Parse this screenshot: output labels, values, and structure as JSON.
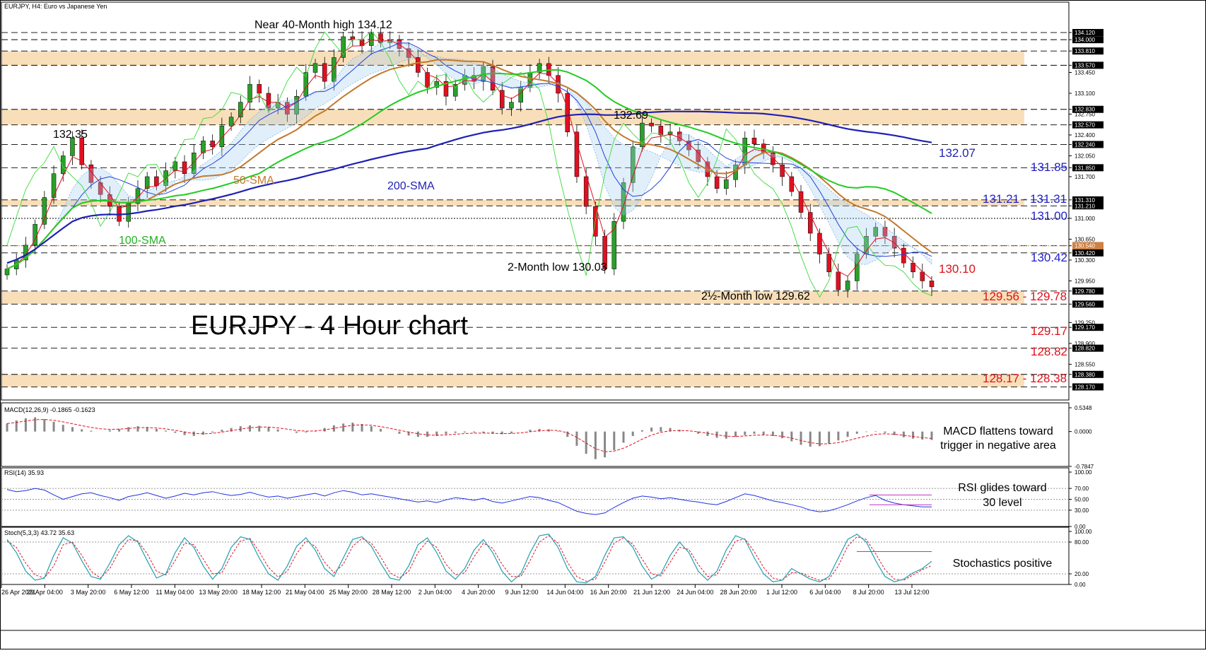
{
  "header": {
    "symbol_text": "EURJPY, H4:",
    "symbol_desc": "Euro vs Japanese Yen"
  },
  "chart_data": [
    {
      "type": "candlestick",
      "title": "EURJPY - 4 Hour chart",
      "instrument": "EURJPY",
      "timeframe": "H4",
      "ylim": [
        127.95,
        134.5
      ],
      "y_ticks": [
        134.12,
        134.0,
        133.81,
        133.57,
        133.45,
        133.1,
        132.83,
        132.75,
        132.57,
        132.4,
        132.24,
        132.05,
        131.85,
        131.7,
        131.31,
        131.21,
        131.0,
        130.65,
        130.54,
        130.42,
        130.3,
        129.95,
        129.78,
        129.56,
        129.25,
        129.17,
        128.9,
        128.82,
        128.55,
        128.38,
        128.17
      ],
      "y_highlight_ticks": [
        134.12,
        134.0,
        133.81,
        133.57,
        132.83,
        132.57,
        132.24,
        131.85,
        131.31,
        131.21,
        130.54,
        130.42,
        129.78,
        129.56,
        129.17,
        128.82,
        128.38,
        128.17
      ],
      "x_labels": [
        "26 Apr 2021",
        "29 Apr 04:00",
        "3 May 20:00",
        "6 May 12:00",
        "11 May 04:00",
        "13 May 20:00",
        "18 May 12:00",
        "21 May 04:00",
        "25 May 20:00",
        "28 May 12:00",
        "2 Jun 04:00",
        "4 Jun 20:00",
        "9 Jun 12:00",
        "14 Jun 04:00",
        "16 Jun 20:00",
        "21 Jun 12:00",
        "24 Jun 04:00",
        "28 Jun 20:00",
        "1 Jul 12:00",
        "6 Jul 04:00",
        "8 Jul 20:00",
        "13 Jul 12:00"
      ],
      "series": [
        {
          "name": "EURJPY H4 close",
          "values": [
            130.15,
            130.3,
            130.55,
            130.9,
            131.35,
            131.75,
            132.05,
            132.35,
            131.9,
            131.6,
            131.4,
            131.2,
            130.95,
            131.25,
            131.5,
            131.7,
            131.55,
            131.8,
            131.95,
            131.75,
            132.1,
            132.3,
            132.2,
            132.55,
            132.7,
            132.95,
            133.25,
            133.1,
            132.85,
            132.95,
            132.75,
            133.05,
            133.45,
            133.6,
            133.3,
            133.7,
            134.05,
            134.0,
            133.9,
            134.1,
            133.95,
            134.0,
            133.85,
            133.7,
            133.45,
            133.2,
            133.3,
            133.05,
            133.25,
            133.4,
            133.3,
            133.55,
            133.15,
            132.85,
            132.95,
            133.2,
            133.45,
            133.6,
            133.4,
            133.1,
            132.45,
            131.7,
            131.2,
            130.7,
            130.15,
            130.95,
            131.6,
            132.2,
            132.6,
            132.55,
            132.4,
            132.45,
            132.3,
            132.15,
            131.95,
            131.7,
            131.5,
            131.65,
            131.9,
            132.35,
            132.25,
            132.1,
            131.9,
            131.7,
            131.45,
            131.1,
            130.75,
            130.4,
            130.1,
            129.8,
            129.95,
            130.4,
            130.7,
            130.85,
            130.7,
            130.5,
            130.25,
            130.1,
            129.95,
            129.85
          ]
        }
      ],
      "moving_averages": [
        {
          "name": "200-SMA",
          "color": "#1f1fb5",
          "end_label": "132.07"
        },
        {
          "name": "100-SMA",
          "color": "#22cc22"
        },
        {
          "name": "50-SMA",
          "color": "#c07a30"
        }
      ],
      "levels": [
        {
          "label": "Near 40-Month high 134.12"
        },
        {
          "label": "132.35"
        },
        {
          "label": "132.69"
        },
        {
          "label": "2-Month low 130.03"
        },
        {
          "label": "2½-Month low 129.62"
        },
        {
          "label": "131.85",
          "color": "#1f1fc8"
        },
        {
          "label": "131.21 - 131.31",
          "color": "#1f1fc8"
        },
        {
          "label": "131.00",
          "color": "#1f1fc8"
        },
        {
          "label": "130.42",
          "color": "#1f1fc8"
        },
        {
          "label": "130.10",
          "color": "#e0101a"
        },
        {
          "label": "129.56 - 129.78",
          "color": "#e0101a"
        },
        {
          "label": "129.17",
          "color": "#e0101a"
        },
        {
          "label": "128.82",
          "color": "#e0101a"
        },
        {
          "label": "128.17 - 128.38",
          "color": "#e0101a"
        }
      ],
      "zones": [
        "133.57 - 133.81",
        "132.57 - 132.83",
        "131.21 - 131.31",
        "129.56 - 129.78",
        "128.17 - 128.38"
      ],
      "zone_color": "#f9dfb9"
    },
    {
      "type": "histogram",
      "name": "MACD",
      "header": "MACD(12,26,9) -0.1865 -0.1623",
      "y_ticks": [
        "0.5348",
        "0.0000",
        "-0.7847"
      ],
      "annotation": [
        "MACD flattens toward",
        "trigger in negative area"
      ],
      "values": [
        0.18,
        0.25,
        0.3,
        0.32,
        0.28,
        0.22,
        0.15,
        0.1,
        0.05,
        0.02,
        0.0,
        0.03,
        0.06,
        0.1,
        0.12,
        0.1,
        0.06,
        0.02,
        -0.03,
        -0.08,
        -0.1,
        -0.07,
        -0.02,
        0.04,
        0.08,
        0.12,
        0.14,
        0.13,
        0.1,
        0.05,
        0.0,
        -0.03,
        -0.02,
        0.02,
        0.08,
        0.14,
        0.18,
        0.2,
        0.17,
        0.12,
        0.06,
        0.0,
        -0.05,
        -0.09,
        -0.12,
        -0.12,
        -0.1,
        -0.06,
        -0.03,
        -0.02,
        -0.02,
        -0.03,
        -0.05,
        -0.06,
        -0.04,
        0.0,
        0.04,
        0.06,
        0.05,
        0.01,
        -0.12,
        -0.32,
        -0.5,
        -0.62,
        -0.58,
        -0.42,
        -0.25,
        -0.1,
        0.03,
        0.09,
        0.1,
        0.08,
        0.04,
        0.0,
        -0.05,
        -0.1,
        -0.14,
        -0.16,
        -0.12,
        -0.08,
        -0.05,
        -0.07,
        -0.1,
        -0.15,
        -0.22,
        -0.3,
        -0.34,
        -0.33,
        -0.27,
        -0.2,
        -0.12,
        -0.05,
        -0.01,
        0.01,
        -0.03,
        -0.08,
        -0.13,
        -0.16,
        -0.18,
        -0.19
      ]
    },
    {
      "type": "line",
      "name": "RSI",
      "header": "RSI(14) 35.93",
      "ylim": [
        0,
        100
      ],
      "y_ticks": [
        "100.00",
        "70.00",
        "50.00",
        "30.00",
        "0.00"
      ],
      "annotation": [
        "RSI glides toward",
        "30 level"
      ],
      "series": [
        {
          "name": "RSI",
          "values": [
            68,
            64,
            66,
            70,
            67,
            58,
            50,
            55,
            60,
            62,
            57,
            53,
            48,
            55,
            58,
            62,
            57,
            52,
            56,
            61,
            58,
            62,
            64,
            60,
            57,
            59,
            63,
            58,
            54,
            56,
            52,
            55,
            58,
            61,
            56,
            62,
            66,
            63,
            58,
            60,
            57,
            54,
            51,
            48,
            45,
            47,
            44,
            49,
            53,
            51,
            48,
            52,
            46,
            43,
            47,
            51,
            55,
            53,
            48,
            44,
            36,
            28,
            24,
            22,
            25,
            35,
            44,
            52,
            56,
            54,
            51,
            53,
            50,
            47,
            45,
            42,
            40,
            46,
            53,
            60,
            57,
            52,
            47,
            44,
            40,
            36,
            30,
            27,
            29,
            34,
            40,
            47,
            53,
            57,
            48,
            43,
            40,
            38,
            36,
            35.93
          ]
        }
      ]
    },
    {
      "type": "line",
      "name": "Stochastics",
      "header": "Stoch(5,3,3) 43.72 35.63",
      "ylim": [
        0,
        100
      ],
      "y_ticks": [
        "100.00",
        "80.00",
        "20.00",
        "0.00"
      ],
      "annotation": [
        "Stochastics positive"
      ],
      "series": [
        {
          "name": "%K",
          "values": [
            85,
            60,
            25,
            8,
            12,
            55,
            88,
            78,
            45,
            15,
            10,
            40,
            75,
            92,
            80,
            45,
            12,
            20,
            60,
            88,
            70,
            35,
            10,
            30,
            70,
            90,
            85,
            50,
            20,
            8,
            35,
            72,
            88,
            65,
            30,
            15,
            50,
            85,
            90,
            72,
            40,
            12,
            8,
            35,
            75,
            88,
            60,
            25,
            10,
            30,
            65,
            85,
            60,
            25,
            5,
            20,
            60,
            92,
            95,
            70,
            30,
            5,
            3,
            15,
            55,
            88,
            90,
            70,
            35,
            10,
            20,
            55,
            80,
            60,
            25,
            8,
            25,
            65,
            92,
            85,
            50,
            20,
            5,
            8,
            30,
            20,
            10,
            5,
            15,
            50,
            85,
            95,
            80,
            45,
            15,
            5,
            10,
            22,
            30,
            43.72
          ]
        },
        {
          "name": "%D",
          "values": [
            82,
            70,
            40,
            18,
            12,
            35,
            75,
            80,
            55,
            25,
            12,
            30,
            62,
            85,
            82,
            58,
            25,
            18,
            45,
            78,
            75,
            48,
            20,
            22,
            55,
            82,
            87,
            62,
            32,
            14,
            25,
            58,
            82,
            72,
            42,
            22,
            38,
            72,
            87,
            78,
            52,
            22,
            12,
            25,
            60,
            82,
            70,
            38,
            18,
            22,
            52,
            78,
            68,
            38,
            15,
            15,
            45,
            80,
            92,
            78,
            42,
            15,
            6,
            10,
            42,
            78,
            88,
            76,
            48,
            20,
            16,
            42,
            70,
            66,
            38,
            15,
            18,
            50,
            82,
            86,
            62,
            32,
            12,
            8,
            22,
            22,
            14,
            8,
            10,
            35,
            72,
            90,
            85,
            58,
            28,
            10,
            8,
            18,
            28,
            35.63
          ]
        }
      ]
    }
  ]
}
